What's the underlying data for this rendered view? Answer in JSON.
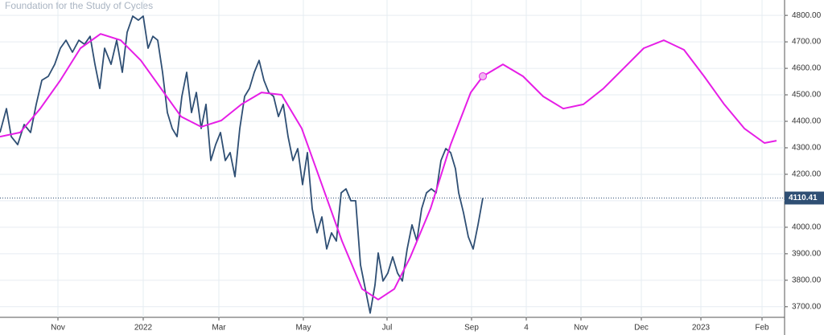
{
  "chart_data": {
    "type": "line",
    "title": "Foundation for the Study of Cycles",
    "xlim": [
      0,
      975
    ],
    "xticks": [
      {
        "value": 72,
        "label": "Nov"
      },
      {
        "value": 178,
        "label": "2022"
      },
      {
        "value": 272,
        "label": "Mar"
      },
      {
        "value": 377,
        "label": "May"
      },
      {
        "value": 481,
        "label": "Jul"
      },
      {
        "value": 586,
        "label": "Sep"
      },
      {
        "value": 654,
        "label": "4"
      },
      {
        "value": 722,
        "label": "Nov"
      },
      {
        "value": 797,
        "label": "Dec"
      },
      {
        "value": 871,
        "label": "2023"
      },
      {
        "value": 947,
        "label": "Feb"
      }
    ],
    "ylim": [
      3660,
      4858
    ],
    "yticks": [
      {
        "value": 3700,
        "label": "3700.00"
      },
      {
        "value": 3800,
        "label": "3800.00"
      },
      {
        "value": 3900,
        "label": "3900.00"
      },
      {
        "value": 4000,
        "label": "4000.00"
      },
      {
        "value": 4100,
        "label": "4100.00"
      },
      {
        "value": 4200,
        "label": "4200.00"
      },
      {
        "value": 4300,
        "label": "4300.00"
      },
      {
        "value": 4400,
        "label": "4400.00"
      },
      {
        "value": 4500,
        "label": "4500.00"
      },
      {
        "value": 4600,
        "label": "4600.00"
      },
      {
        "value": 4700,
        "label": "4700.00"
      },
      {
        "value": 4800,
        "label": "4800.00"
      }
    ],
    "grid": true,
    "last_price": 4110.41,
    "series": [
      {
        "color": "#2f4f74",
        "x": [
          0,
          8,
          14,
          22,
          30,
          38,
          45,
          52,
          60,
          68,
          75,
          82,
          90,
          98,
          105,
          112,
          118,
          124,
          130,
          138,
          145,
          152,
          158,
          165,
          172,
          178,
          184,
          190,
          196,
          202,
          208,
          214,
          220,
          226,
          232,
          238,
          244,
          250,
          256,
          262,
          268,
          274,
          280,
          286,
          292,
          298,
          304,
          310,
          316,
          322,
          328,
          334,
          340,
          346,
          352,
          358,
          364,
          370,
          376,
          382,
          388,
          394,
          400,
          406,
          412,
          418,
          424,
          430,
          436,
          442,
          448,
          454,
          460,
          466,
          470,
          476,
          482,
          488,
          494,
          500,
          506,
          512,
          518,
          524,
          530,
          536,
          542,
          548,
          554,
          560,
          566,
          570,
          576,
          582,
          588,
          594,
          600
        ],
        "values": [
          4358,
          4448,
          4342,
          4312,
          4388,
          4358,
          4464,
          4555,
          4570,
          4615,
          4676,
          4706,
          4661,
          4706,
          4691,
          4721,
          4615,
          4524,
          4676,
          4615,
          4706,
          4585,
          4736,
          4797,
          4782,
          4797,
          4676,
          4721,
          4706,
          4585,
          4433,
          4373,
          4342,
          4494,
          4585,
          4433,
          4509,
          4373,
          4464,
          4252,
          4312,
          4358,
          4252,
          4282,
          4191,
          4373,
          4494,
          4524,
          4585,
          4630,
          4555,
          4509,
          4494,
          4418,
          4464,
          4342,
          4252,
          4297,
          4161,
          4282,
          4070,
          3979,
          4039,
          3918,
          3979,
          3948,
          4130,
          4145,
          4100,
          4100,
          3858,
          3767,
          3676,
          3782,
          3903,
          3797,
          3827,
          3888,
          3827,
          3797,
          3918,
          4009,
          3948,
          4070,
          4130,
          4145,
          4130,
          4252,
          4297,
          4282,
          4221,
          4130,
          4055,
          3964,
          3918,
          4009,
          4110.41
        ]
      },
      {
        "color": "#e61ee6",
        "x": [
          0,
          25,
          50,
          75,
          100,
          125,
          150,
          175,
          200,
          225,
          250,
          275,
          300,
          325,
          350,
          375,
          400,
          425,
          450,
          470,
          490,
          510,
          535,
          560,
          585,
          600,
          625,
          650,
          675,
          700,
          725,
          750,
          775,
          800,
          825,
          850,
          875,
          900,
          925,
          950,
          965
        ],
        "values": [
          4342,
          4358,
          4448,
          4555,
          4676,
          4730,
          4706,
          4630,
          4524,
          4418,
          4379,
          4403,
          4464,
          4509,
          4500,
          4373,
          4161,
          3948,
          3767,
          3727,
          3767,
          3888,
          4070,
          4312,
          4509,
          4570,
          4615,
          4570,
          4494,
          4448,
          4464,
          4524,
          4600,
          4676,
          4706,
          4670,
          4570,
          4464,
          4373,
          4318,
          4327
        ],
        "marker_index": 25
      }
    ]
  }
}
